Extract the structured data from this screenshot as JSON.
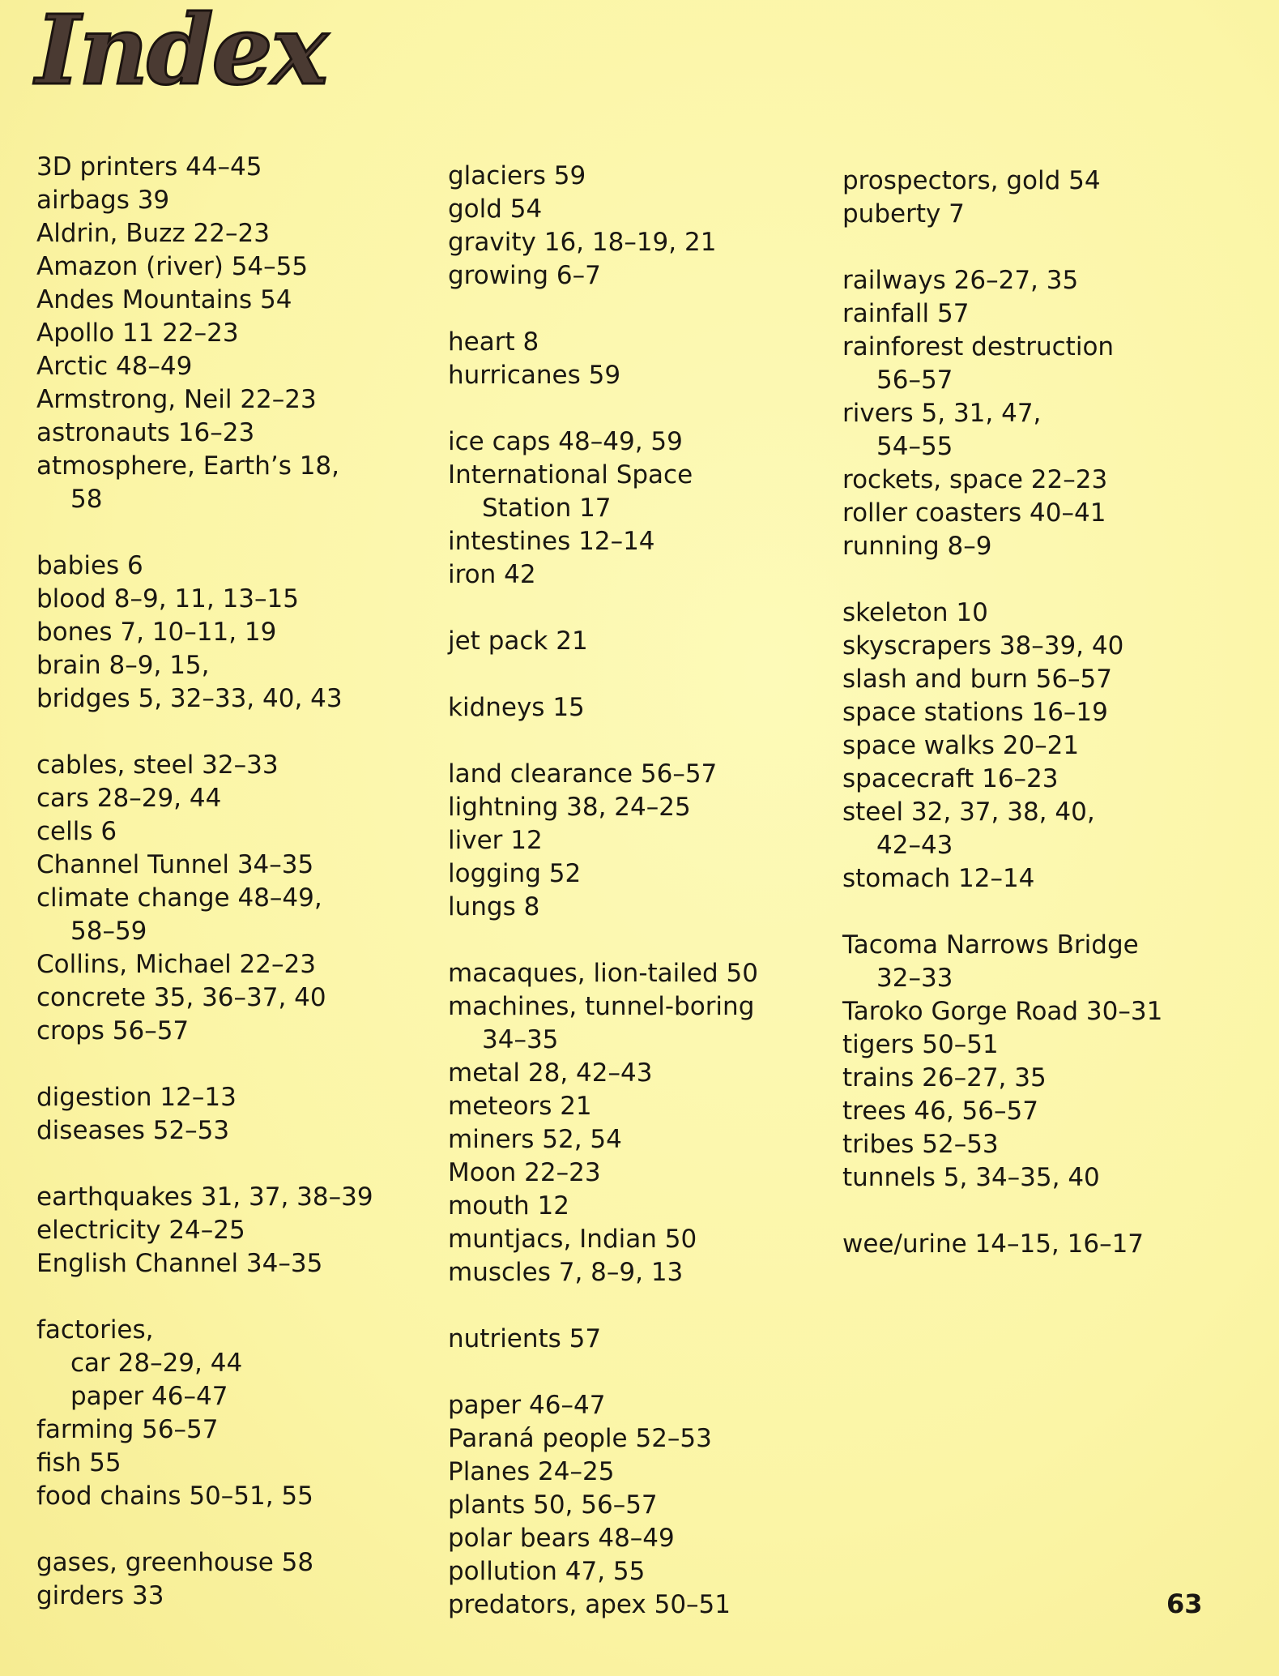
{
  "title": "Index",
  "page_number": "63",
  "columns": [
    [
      [
        [
          "3D printers 44–45"
        ],
        [
          "airbags 39"
        ],
        [
          "Aldrin, Buzz 22–23"
        ],
        [
          "Amazon (river) 54–55"
        ],
        [
          "Andes Mountains 54"
        ],
        [
          "Apollo 11 22–23"
        ],
        [
          "Arctic 48–49"
        ],
        [
          "Armstrong, Neil 22–23"
        ],
        [
          "astronauts 16–23"
        ],
        [
          "atmosphere, Earth’s 18,",
          "58"
        ]
      ],
      [
        [
          "babies 6"
        ],
        [
          "blood 8–9, 11, 13–15"
        ],
        [
          "bones 7, 10–11, 19"
        ],
        [
          "brain 8–9, 15,"
        ],
        [
          "bridges 5, 32–33, 40, 43"
        ]
      ],
      [
        [
          "cables, steel 32–33"
        ],
        [
          "cars 28–29, 44"
        ],
        [
          "cells 6"
        ],
        [
          "Channel Tunnel 34–35"
        ],
        [
          "climate change 48–49,",
          "58–59"
        ],
        [
          "Collins, Michael 22–23"
        ],
        [
          "concrete 35, 36–37, 40"
        ],
        [
          "crops 56–57"
        ]
      ],
      [
        [
          "digestion 12–13"
        ],
        [
          "diseases 52–53"
        ]
      ],
      [
        [
          "earthquakes 31, 37, 38–39"
        ],
        [
          "electricity 24–25"
        ],
        [
          "English Channel 34–35"
        ]
      ],
      [
        [
          "factories,"
        ],
        [
          "",
          "car 28–29, 44"
        ],
        [
          "",
          "paper 46–47"
        ],
        [
          "farming 56–57"
        ],
        [
          "fish 55"
        ],
        [
          "food chains 50–51, 55"
        ]
      ],
      [
        [
          "gases, greenhouse 58"
        ],
        [
          "girders 33"
        ]
      ]
    ],
    [
      [
        [
          "glaciers 59"
        ],
        [
          "gold 54"
        ],
        [
          "gravity 16, 18–19, 21"
        ],
        [
          "growing 6–7"
        ]
      ],
      [
        [
          "heart 8"
        ],
        [
          "hurricanes 59"
        ]
      ],
      [
        [
          "ice caps 48–49, 59"
        ],
        [
          "International Space",
          "Station 17"
        ],
        [
          "intestines 12–14"
        ],
        [
          "iron 42"
        ]
      ],
      [
        [
          "jet pack 21"
        ]
      ],
      [
        [
          "kidneys 15"
        ]
      ],
      [
        [
          "land clearance 56–57"
        ],
        [
          "lightning 38, 24–25"
        ],
        [
          "liver 12"
        ],
        [
          "logging 52"
        ],
        [
          "lungs 8"
        ]
      ],
      [
        [
          "macaques, lion-tailed 50"
        ],
        [
          "machines, tunnel-boring",
          "34–35"
        ],
        [
          "metal 28, 42–43"
        ],
        [
          "meteors 21"
        ],
        [
          "miners 52, 54"
        ],
        [
          "Moon 22–23"
        ],
        [
          "mouth 12"
        ],
        [
          "muntjacs, Indian 50"
        ],
        [
          "muscles 7, 8–9, 13"
        ]
      ],
      [
        [
          "nutrients 57"
        ]
      ],
      [
        [
          "paper 46–47"
        ],
        [
          "Paraná people 52–53"
        ],
        [
          "Planes 24–25"
        ],
        [
          "plants 50, 56–57"
        ],
        [
          "polar bears 48–49"
        ],
        [
          "pollution 47, 55"
        ],
        [
          "predators, apex 50–51"
        ]
      ]
    ],
    [
      [
        [
          "prospectors, gold 54"
        ],
        [
          "puberty 7"
        ]
      ],
      [
        [
          "railways 26–27, 35"
        ],
        [
          "rainfall 57"
        ],
        [
          "rainforest destruction",
          "56–57"
        ],
        [
          "rivers 5, 31, 47,",
          "54–55"
        ],
        [
          "rockets, space 22–23"
        ],
        [
          "roller coasters 40–41"
        ],
        [
          "running 8–9"
        ]
      ],
      [
        [
          "skeleton 10"
        ],
        [
          "skyscrapers 38–39, 40"
        ],
        [
          "slash and burn 56–57"
        ],
        [
          "space stations 16–19"
        ],
        [
          "space walks 20–21"
        ],
        [
          "spacecraft 16–23"
        ],
        [
          "steel 32, 37, 38, 40,",
          "42–43"
        ],
        [
          "stomach 12–14"
        ]
      ],
      [
        [
          "Tacoma Narrows Bridge",
          "32–33"
        ],
        [
          "Taroko Gorge Road 30–31"
        ],
        [
          "tigers 50–51"
        ],
        [
          "trains 26–27, 35"
        ],
        [
          "trees 46, 56–57"
        ],
        [
          "tribes 52–53"
        ],
        [
          "tunnels 5, 34–35, 40"
        ]
      ],
      [
        [
          "wee/urine 14–15, 16–17"
        ]
      ]
    ]
  ]
}
